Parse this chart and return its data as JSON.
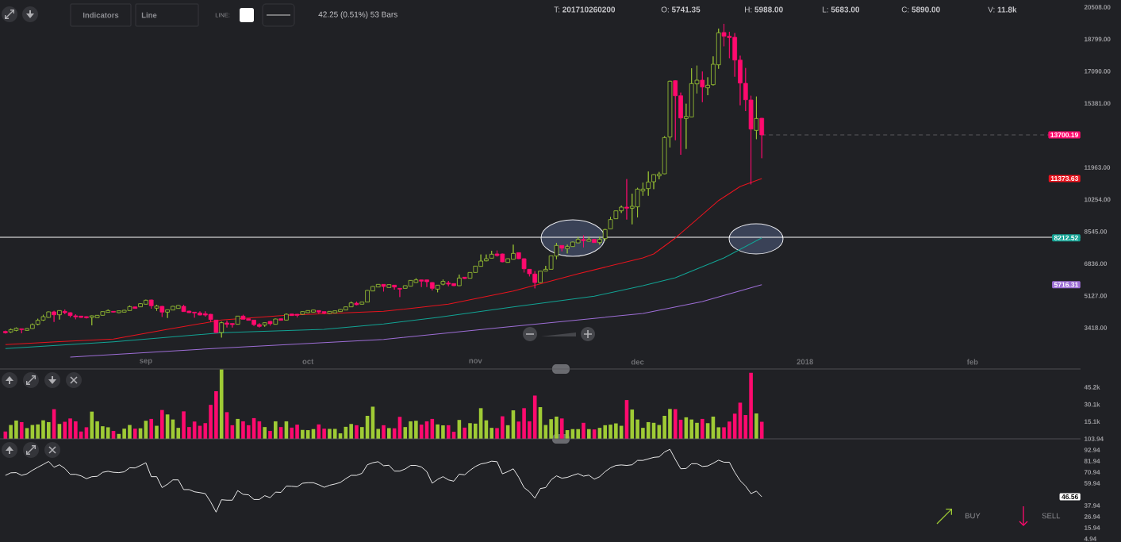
{
  "chart_data": [
    {
      "type": "candlestick",
      "x": [
        "2017-08-06",
        "2017-08-07",
        "2017-08-08",
        "2017-08-09",
        "2017-08-10",
        "2017-08-11",
        "2017-08-12",
        "2017-08-13",
        "2017-08-14",
        "2017-08-15",
        "2017-08-16",
        "2017-08-17",
        "2017-08-18",
        "2017-08-19",
        "2017-08-20",
        "2017-08-21",
        "2017-08-22",
        "2017-08-23",
        "2017-08-24",
        "2017-08-25",
        "2017-08-26",
        "2017-08-27",
        "2017-08-28",
        "2017-08-29",
        "2017-08-30",
        "2017-08-31",
        "2017-09-01",
        "2017-09-02",
        "2017-09-03",
        "2017-09-04",
        "2017-09-05",
        "2017-09-06",
        "2017-09-07",
        "2017-09-08",
        "2017-09-09",
        "2017-09-10",
        "2017-09-11",
        "2017-09-12",
        "2017-09-13",
        "2017-09-14",
        "2017-09-15",
        "2017-09-16",
        "2017-09-17",
        "2017-09-18",
        "2017-09-19",
        "2017-09-20",
        "2017-09-21",
        "2017-09-22",
        "2017-09-23",
        "2017-09-24",
        "2017-09-25",
        "2017-09-26",
        "2017-09-27",
        "2017-09-28",
        "2017-09-29",
        "2017-09-30",
        "2017-10-01",
        "2017-10-02",
        "2017-10-03",
        "2017-10-04",
        "2017-10-05",
        "2017-10-06",
        "2017-10-07",
        "2017-10-08",
        "2017-10-09",
        "2017-10-10",
        "2017-10-11",
        "2017-10-12",
        "2017-10-13",
        "2017-10-14",
        "2017-10-15",
        "2017-10-16",
        "2017-10-17",
        "2017-10-18",
        "2017-10-19",
        "2017-10-20",
        "2017-10-21",
        "2017-10-22",
        "2017-10-23",
        "2017-10-24",
        "2017-10-25",
        "2017-10-26",
        "2017-10-27",
        "2017-10-28",
        "2017-10-29",
        "2017-10-30",
        "2017-10-31",
        "2017-11-01",
        "2017-11-02",
        "2017-11-03",
        "2017-11-04",
        "2017-11-05",
        "2017-11-06",
        "2017-11-07",
        "2017-11-08",
        "2017-11-09",
        "2017-11-10",
        "2017-11-11",
        "2017-11-12",
        "2017-11-13",
        "2017-11-14",
        "2017-11-15",
        "2017-11-16",
        "2017-11-17",
        "2017-11-18",
        "2017-11-19",
        "2017-11-20",
        "2017-11-21",
        "2017-11-22",
        "2017-11-23",
        "2017-11-24",
        "2017-11-25",
        "2017-11-26",
        "2017-11-27",
        "2017-11-28",
        "2017-11-29",
        "2017-11-30",
        "2017-12-01",
        "2017-12-02",
        "2017-12-03",
        "2017-12-04",
        "2017-12-05",
        "2017-12-06",
        "2017-12-07",
        "2017-12-08",
        "2017-12-09",
        "2017-12-10",
        "2017-12-11",
        "2017-12-12",
        "2017-12-13",
        "2017-12-14",
        "2017-12-15",
        "2017-12-16",
        "2017-12-17",
        "2017-12-18",
        "2017-12-19",
        "2017-12-20",
        "2017-12-21",
        "2017-12-22",
        "2017-12-23",
        "2017-12-24"
      ],
      "ohlc": [
        [
          3222,
          3264,
          3109,
          3151
        ],
        [
          3194,
          3377,
          3151,
          3320
        ],
        [
          3278,
          3433,
          3236,
          3391
        ],
        [
          3363,
          3377,
          3123,
          3320
        ],
        [
          3278,
          3391,
          3264,
          3377
        ],
        [
          3377,
          3645,
          3363,
          3588
        ],
        [
          3602,
          3899,
          3546,
          3814
        ],
        [
          3828,
          4110,
          3786,
          4011
        ],
        [
          3969,
          4279,
          3955,
          4265
        ],
        [
          4265,
          4322,
          3729,
          4110
        ],
        [
          4110,
          4350,
          3856,
          4336
        ],
        [
          4293,
          4392,
          4138,
          4223
        ],
        [
          4223,
          4237,
          3969,
          4068
        ],
        [
          4054,
          4138,
          3870,
          3997
        ],
        [
          4040,
          4054,
          3955,
          3969
        ],
        [
          4011,
          4025,
          3913,
          3955
        ],
        [
          3969,
          4068,
          3546,
          4054
        ],
        [
          3955,
          4096,
          3941,
          4082
        ],
        [
          4082,
          4293,
          4068,
          4279
        ],
        [
          4237,
          4392,
          4223,
          4336
        ],
        [
          4293,
          4307,
          4237,
          4251
        ],
        [
          4223,
          4336,
          4209,
          4322
        ],
        [
          4251,
          4364,
          4237,
          4350
        ],
        [
          4336,
          4604,
          4322,
          4547
        ],
        [
          4533,
          4547,
          4434,
          4448
        ],
        [
          4533,
          4730,
          4519,
          4702
        ],
        [
          4674,
          4914,
          4660,
          4886
        ],
        [
          4900,
          4914,
          4434,
          4590
        ],
        [
          4463,
          4646,
          4322,
          4575
        ],
        [
          4561,
          4575,
          3997,
          4251
        ],
        [
          4251,
          4392,
          3941,
          4378
        ],
        [
          4364,
          4575,
          4350,
          4561
        ],
        [
          4448,
          4618,
          4434,
          4604
        ],
        [
          4561,
          4646,
          4265,
          4279
        ],
        [
          4307,
          4322,
          4209,
          4223
        ],
        [
          4251,
          4265,
          3955,
          4209
        ],
        [
          4209,
          4293,
          4082,
          4096
        ],
        [
          4166,
          4293,
          4011,
          4096
        ],
        [
          4138,
          4152,
          3729,
          3856
        ],
        [
          3828,
          3842,
          3151,
          3165
        ],
        [
          3165,
          3743,
          2897,
          3687
        ],
        [
          3673,
          3800,
          3433,
          3602
        ],
        [
          3645,
          3659,
          3433,
          3588
        ],
        [
          3602,
          4054,
          3588,
          4040
        ],
        [
          4040,
          4110,
          3856,
          3870
        ],
        [
          3899,
          3913,
          3800,
          3814
        ],
        [
          3828,
          3842,
          3518,
          3588
        ],
        [
          3588,
          3659,
          3433,
          3490
        ],
        [
          3560,
          3701,
          3476,
          3687
        ],
        [
          3758,
          3772,
          3532,
          3631
        ],
        [
          3602,
          3899,
          3588,
          3884
        ],
        [
          3899,
          3913,
          3800,
          3814
        ],
        [
          3828,
          4181,
          3814,
          4138
        ],
        [
          4152,
          4166,
          4054,
          4068
        ],
        [
          4138,
          4152,
          3969,
          4082
        ],
        [
          4138,
          4293,
          4124,
          4279
        ],
        [
          4223,
          4350,
          4209,
          4336
        ],
        [
          4251,
          4378,
          4237,
          4364
        ],
        [
          4336,
          4350,
          4181,
          4251
        ],
        [
          4279,
          4293,
          4138,
          4209
        ],
        [
          4181,
          4307,
          4166,
          4293
        ],
        [
          4209,
          4336,
          4195,
          4322
        ],
        [
          4279,
          4406,
          4265,
          4392
        ],
        [
          4364,
          4547,
          4350,
          4533
        ],
        [
          4533,
          4815,
          4519,
          4744
        ],
        [
          4730,
          4815,
          4618,
          4646
        ],
        [
          4674,
          4801,
          4660,
          4787
        ],
        [
          4787,
          5421,
          4773,
          5407
        ],
        [
          5379,
          5633,
          5365,
          5619
        ],
        [
          5591,
          5746,
          5577,
          5732
        ],
        [
          5732,
          5746,
          5351,
          5619
        ],
        [
          5563,
          5732,
          5549,
          5718
        ],
        [
          5689,
          5703,
          5450,
          5591
        ],
        [
          5520,
          5534,
          5055,
          5478
        ],
        [
          5520,
          5675,
          5506,
          5661
        ],
        [
          5633,
          5957,
          5619,
          5943
        ],
        [
          5830,
          6056,
          5816,
          5971
        ],
        [
          5971,
          5985,
          5591,
          5901
        ],
        [
          5971,
          5985,
          5591,
          5873
        ],
        [
          5830,
          5844,
          5407,
          5520
        ],
        [
          5478,
          5703,
          5309,
          5689
        ],
        [
          5741.35,
          5988,
          5683,
          5890
        ],
        [
          5802,
          5915,
          5633,
          5746
        ],
        [
          5774,
          5788,
          5647,
          5661
        ],
        [
          5661,
          6253,
          5647,
          6070
        ],
        [
          6112,
          6126,
          6028,
          6042
        ],
        [
          6056,
          6380,
          6042,
          6366
        ],
        [
          6366,
          6719,
          6352,
          6704
        ],
        [
          6690,
          7325,
          6676,
          6972
        ],
        [
          6986,
          7325,
          6958,
          7099
        ],
        [
          7127,
          7522,
          7113,
          7339
        ],
        [
          7353,
          7536,
          7212,
          7268
        ],
        [
          7353,
          7367,
          6916,
          6930
        ],
        [
          6902,
          7113,
          6888,
          7099
        ],
        [
          7071,
          7847,
          7057,
          7381
        ],
        [
          7424,
          7438,
          7085,
          7099
        ],
        [
          7099,
          7113,
          6366,
          6563
        ],
        [
          6535,
          6549,
          6155,
          6296
        ],
        [
          6282,
          6437,
          5520,
          5830
        ],
        [
          5830,
          6451,
          5816,
          6437
        ],
        [
          6437,
          6719,
          6423,
          6535
        ],
        [
          6535,
          7268,
          6521,
          7254
        ],
        [
          7240,
          7945,
          7071,
          7804
        ],
        [
          7804,
          7818,
          7494,
          7663
        ],
        [
          7635,
          7847,
          7381,
          7748
        ],
        [
          7748,
          8002,
          7734,
          7988
        ],
        [
          7945,
          8270,
          7931,
          8129
        ],
        [
          8129,
          8340,
          7706,
          8058
        ],
        [
          8030,
          8270,
          8016,
          8129
        ],
        [
          8129,
          8143,
          7945,
          7959
        ],
        [
          7959,
          8270,
          7847,
          8129
        ],
        [
          8171,
          8693,
          8058,
          8650
        ],
        [
          8693,
          9327,
          8679,
          9186
        ],
        [
          9229,
          9665,
          9214,
          9651
        ],
        [
          9651,
          9933,
          9538,
          9849
        ],
        [
          9849,
          11343,
          9186,
          9792
        ],
        [
          9792,
          10568,
          8932,
          9891
        ],
        [
          9863,
          10878,
          9299,
          10808
        ],
        [
          10709,
          11160,
          10455,
          10808
        ],
        [
          10836,
          11752,
          10455,
          11188
        ],
        [
          11202,
          11597,
          10808,
          11583
        ],
        [
          11513,
          11724,
          11329,
          11611
        ],
        [
          11625,
          13628,
          11611,
          13557
        ],
        [
          13585,
          16588,
          13035,
          16560
        ],
        [
          16588,
          16616,
          13416,
          15785
        ],
        [
          15785,
          15954,
          12641,
          14600
        ],
        [
          14572,
          15362,
          12951,
          14685
        ],
        [
          14657,
          17251,
          14643,
          16434
        ],
        [
          16419,
          17392,
          15912,
          16616
        ],
        [
          16616,
          17082,
          15447,
          16250
        ],
        [
          16208,
          16772,
          15813,
          16349
        ],
        [
          16377,
          17886,
          16335,
          17463
        ],
        [
          17435,
          19366,
          17223,
          19141
        ],
        [
          19155,
          19620,
          18422,
          18957
        ],
        [
          18957,
          19197,
          17787,
          18887
        ],
        [
          18901,
          19127,
          16800,
          17688
        ],
        [
          17688,
          17928,
          15277,
          16462
        ],
        [
          16448,
          17265,
          14967,
          15573
        ],
        [
          15559,
          15785,
          11061,
          14008
        ],
        [
          13938,
          15743,
          13472,
          14572
        ],
        [
          14586,
          14600,
          12457,
          13700.19
        ]
      ],
      "colors": [
        "#ff0a6e",
        "#9fcb35",
        "#9fcb35",
        "#ff0a6e",
        "#9fcb35",
        "#9fcb35",
        "#9fcb35",
        "#9fcb35",
        "#9fcb35",
        "#ff0a6e",
        "#9fcb35",
        "#ff0a6e",
        "#ff0a6e",
        "#ff0a6e",
        "#ff0a6e",
        "#ff0a6e",
        "#9fcb35",
        "#9fcb35",
        "#9fcb35",
        "#9fcb35",
        "#ff0a6e",
        "#9fcb35",
        "#9fcb35",
        "#9fcb35",
        "#ff0a6e",
        "#9fcb35",
        "#9fcb35",
        "#ff0a6e",
        "#9fcb35",
        "#ff0a6e",
        "#9fcb35",
        "#9fcb35",
        "#9fcb35",
        "#ff0a6e",
        "#ff0a6e",
        "#ff0a6e",
        "#ff0a6e",
        "#ff0a6e",
        "#ff0a6e",
        "#ff0a6e",
        "#9fcb35",
        "#ff0a6e",
        "#ff0a6e",
        "#9fcb35",
        "#ff0a6e",
        "#ff0a6e",
        "#ff0a6e",
        "#ff0a6e",
        "#9fcb35",
        "#ff0a6e",
        "#9fcb35",
        "#ff0a6e",
        "#9fcb35",
        "#ff0a6e",
        "#ff0a6e",
        "#9fcb35",
        "#9fcb35",
        "#9fcb35",
        "#ff0a6e",
        "#ff0a6e",
        "#9fcb35",
        "#9fcb35",
        "#9fcb35",
        "#9fcb35",
        "#9fcb35",
        "#ff0a6e",
        "#9fcb35",
        "#9fcb35",
        "#9fcb35",
        "#9fcb35",
        "#ff0a6e",
        "#9fcb35",
        "#ff0a6e",
        "#ff0a6e",
        "#9fcb35",
        "#9fcb35",
        "#9fcb35",
        "#ff0a6e",
        "#ff0a6e",
        "#ff0a6e",
        "#9fcb35",
        "#9fcb35",
        "#ff0a6e",
        "#ff0a6e",
        "#9fcb35",
        "#ff0a6e",
        "#9fcb35",
        "#9fcb35",
        "#9fcb35",
        "#9fcb35",
        "#9fcb35",
        "#ff0a6e",
        "#ff0a6e",
        "#9fcb35",
        "#9fcb35",
        "#ff0a6e",
        "#ff0a6e",
        "#ff0a6e",
        "#ff0a6e",
        "#9fcb35",
        "#9fcb35",
        "#9fcb35",
        "#9fcb35",
        "#ff0a6e",
        "#9fcb35",
        "#9fcb35",
        "#9fcb35",
        "#ff0a6e",
        "#9fcb35",
        "#ff0a6e",
        "#9fcb35",
        "#9fcb35",
        "#9fcb35",
        "#9fcb35",
        "#9fcb35",
        "#ff0a6e",
        "#9fcb35",
        "#9fcb35",
        "#9fcb35",
        "#9fcb35",
        "#9fcb35",
        "#9fcb35",
        "#9fcb35",
        "#9fcb35",
        "#ff0a6e",
        "#ff0a6e",
        "#9fcb35",
        "#9fcb35",
        "#9fcb35",
        "#ff0a6e",
        "#9fcb35",
        "#9fcb35",
        "#9fcb35",
        "#ff0a6e",
        "#ff0a6e",
        "#ff0a6e",
        "#ff0a6e",
        "#ff0a6e",
        "#ff0a6e",
        "#9fcb35",
        "#ff0a6e"
      ],
      "series": [
        {
          "type": "line",
          "color": "#e8141e",
          "x": [
            "2017-08-06",
            "2017-08-16",
            "2017-08-26",
            "2017-09-05",
            "2017-09-15",
            "2017-09-27",
            "2017-10-15",
            "2017-10-27",
            "2017-11-08",
            "2017-11-20",
            "2017-12-02",
            "2017-12-04",
            "2017-12-08",
            "2017-12-12",
            "2017-12-16",
            "2017-12-20",
            "2017-12-24"
          ],
          "values": [
            2517,
            2680,
            2813,
            3335,
            3828,
            4082,
            4293,
            4674,
            5379,
            6296,
            7141,
            7353,
            8200,
            9200,
            10200,
            10950,
            11373.63
          ]
        },
        {
          "type": "line",
          "color": "#12a394",
          "x": [
            "2017-08-06",
            "2017-08-26",
            "2017-09-15",
            "2017-10-04",
            "2017-10-15",
            "2017-10-25",
            "2017-11-08",
            "2017-11-23",
            "2017-12-02",
            "2017-12-08",
            "2017-12-17",
            "2017-12-24"
          ],
          "values": [
            2305,
            2672,
            3151,
            3335,
            3620,
            3969,
            4533,
            5097,
            5661,
            6083,
            7141,
            8212.52
          ]
        },
        {
          "type": "line",
          "color": "#9d6ed6",
          "x": [
            "2017-08-18",
            "2017-09-14",
            "2017-10-15",
            "2017-11-05",
            "2017-12-02",
            "2017-12-13",
            "2017-12-24"
          ],
          "values": [
            1854,
            2319,
            2799,
            3405,
            4180,
            4815,
            5716.31
          ]
        }
      ],
      "xlim": [
        "2017-08-05",
        "2018-02-21"
      ],
      "ylim": [
        1220,
        20890
      ],
      "xticks": [
        {
          "value": "2017-09-01",
          "label": "sep"
        },
        {
          "value": "2017-10-01",
          "label": "oct"
        },
        {
          "value": "2017-11-01",
          "label": "nov"
        },
        {
          "value": "2017-12-01",
          "label": "dec"
        },
        {
          "value": "2018-01-01",
          "label": "2018"
        },
        {
          "value": "2018-02-01",
          "label": "feb"
        }
      ],
      "yticks": [
        {
          "value": 3418,
          "label": "3418.00"
        },
        {
          "value": 5127,
          "label": "5127.00"
        },
        {
          "value": 6836,
          "label": "6836.00"
        },
        {
          "value": 8545,
          "label": "8545.00"
        },
        {
          "value": 10254,
          "label": "10254.00"
        },
        {
          "value": 11963,
          "label": "11963.00"
        },
        {
          "value": 15381,
          "label": "15381.00"
        },
        {
          "value": 17090,
          "label": "17090.00"
        },
        {
          "value": 18799,
          "label": "18799.00"
        },
        {
          "value": 20508,
          "label": "20508.00"
        }
      ],
      "ref_lines": [
        {
          "axis": "y",
          "value": 8240,
          "color": "#ffffff"
        },
        {
          "axis": "y",
          "value": 13700.19,
          "color": "#5a5a5e",
          "line_style": "dashed"
        }
      ],
      "annotations": [
        "Indicators",
        "Line",
        "LINE:",
        "42.25 (0.51%) 53 Bars",
        "T: **201710260200**",
        "O: **5741.35**",
        "H: **5988.00**",
        "L: **5683.00**",
        "C: **5890.00**",
        "V: **11.8k**",
        "13700.19",
        "11373.63",
        "8212.52",
        "5716.31"
      ]
    },
    {
      "type": "bar",
      "x": [
        "2017-08-06",
        "2017-08-07",
        "2017-08-08",
        "2017-08-09",
        "2017-08-10",
        "2017-08-11",
        "2017-08-12",
        "2017-08-13",
        "2017-08-14",
        "2017-08-15",
        "2017-08-16",
        "2017-08-17",
        "2017-08-18",
        "2017-08-19",
        "2017-08-20",
        "2017-08-21",
        "2017-08-22",
        "2017-08-23",
        "2017-08-24",
        "2017-08-25",
        "2017-08-26",
        "2017-08-27",
        "2017-08-28",
        "2017-08-29",
        "2017-08-30",
        "2017-08-31",
        "2017-09-01",
        "2017-09-02",
        "2017-09-03",
        "2017-09-04",
        "2017-09-05",
        "2017-09-06",
        "2017-09-07",
        "2017-09-08",
        "2017-09-09",
        "2017-09-10",
        "2017-09-11",
        "2017-09-12",
        "2017-09-13",
        "2017-09-14",
        "2017-09-15",
        "2017-09-16",
        "2017-09-17",
        "2017-09-18",
        "2017-09-19",
        "2017-09-20",
        "2017-09-21",
        "2017-09-22",
        "2017-09-23",
        "2017-09-24",
        "2017-09-25",
        "2017-09-26",
        "2017-09-27",
        "2017-09-28",
        "2017-09-29",
        "2017-09-30",
        "2017-10-01",
        "2017-10-02",
        "2017-10-03",
        "2017-10-04",
        "2017-10-05",
        "2017-10-06",
        "2017-10-07",
        "2017-10-08",
        "2017-10-09",
        "2017-10-10",
        "2017-10-11",
        "2017-10-12",
        "2017-10-13",
        "2017-10-14",
        "2017-10-15",
        "2017-10-16",
        "2017-10-17",
        "2017-10-18",
        "2017-10-19",
        "2017-10-20",
        "2017-10-21",
        "2017-10-22",
        "2017-10-23",
        "2017-10-24",
        "2017-10-25",
        "2017-10-26",
        "2017-10-27",
        "2017-10-28",
        "2017-10-29",
        "2017-10-30",
        "2017-10-31",
        "2017-11-01",
        "2017-11-02",
        "2017-11-03",
        "2017-11-04",
        "2017-11-05",
        "2017-11-06",
        "2017-11-07",
        "2017-11-08",
        "2017-11-09",
        "2017-11-10",
        "2017-11-11",
        "2017-11-12",
        "2017-11-13",
        "2017-11-14",
        "2017-11-15",
        "2017-11-16",
        "2017-11-17",
        "2017-11-18",
        "2017-11-19",
        "2017-11-20",
        "2017-11-21",
        "2017-11-22",
        "2017-11-23",
        "2017-11-24",
        "2017-11-25",
        "2017-11-26",
        "2017-11-27",
        "2017-11-28",
        "2017-11-29",
        "2017-11-30",
        "2017-12-01",
        "2017-12-02",
        "2017-12-03",
        "2017-12-04",
        "2017-12-05",
        "2017-12-06",
        "2017-12-07",
        "2017-12-08",
        "2017-12-09",
        "2017-12-10",
        "2017-12-11",
        "2017-12-12",
        "2017-12-13",
        "2017-12-14",
        "2017-12-15",
        "2017-12-16",
        "2017-12-17",
        "2017-12-18",
        "2017-12-19",
        "2017-12-20",
        "2017-12-21",
        "2017-12-22",
        "2017-12-23",
        "2017-12-24"
      ],
      "values": [
        6.4,
        12.1,
        16.0,
        14.6,
        9.4,
        12.1,
        12.6,
        16.2,
        14.6,
        25.9,
        13.0,
        14.9,
        17.8,
        15.3,
        6.4,
        10.1,
        23.8,
        15.3,
        11.0,
        10.1,
        6.9,
        4.3,
        8.9,
        12.1,
        8.9,
        9.2,
        15.8,
        17.4,
        11.4,
        25.2,
        21.3,
        16.9,
        9.6,
        24.0,
        10.3,
        15.1,
        11.4,
        13.7,
        29.7,
        41.6,
        60.6,
        23.3,
        11.9,
        17.4,
        15.3,
        11.9,
        18.1,
        15.3,
        10.3,
        6.9,
        15.3,
        10.3,
        15.3,
        9.8,
        12.4,
        7.8,
        7.6,
        8.5,
        12.6,
        8.9,
        8.7,
        8.7,
        4.8,
        10.5,
        13.0,
        11.9,
        10.3,
        20.1,
        28.1,
        8.7,
        11.9,
        9.4,
        9.2,
        19.2,
        10.3,
        15.3,
        15.8,
        12.4,
        15.3,
        17.4,
        12.6,
        11.8,
        11.9,
        6.2,
        16.5,
        9.8,
        13.7,
        13.3,
        26.8,
        16.2,
        9.6,
        9.4,
        19.7,
        11.9,
        24.9,
        15.1,
        26.8,
        15.3,
        37.8,
        27.7,
        12.1,
        17.2,
        19.4,
        17.8,
        7.6,
        8.5,
        8.5,
        14.0,
        8.5,
        8.2,
        9.6,
        11.9,
        12.4,
        13.5,
        11.4,
        33.9,
        25.6,
        16.9,
        9.6,
        14.6,
        14.0,
        12.1,
        20.1,
        26.1,
        25.9,
        16.7,
        18.8,
        16.9,
        14.0,
        17.4,
        13.7,
        19.4,
        10.1,
        10.1,
        15.1,
        22.0,
        31.6,
        20.8,
        57.7,
        22.2,
        14.9
      ],
      "colors": [
        "#ff0a6e",
        "#9fcb35",
        "#9fcb35",
        "#ff0a6e",
        "#9fcb35",
        "#9fcb35",
        "#9fcb35",
        "#9fcb35",
        "#9fcb35",
        "#ff0a6e",
        "#9fcb35",
        "#ff0a6e",
        "#ff0a6e",
        "#ff0a6e",
        "#ff0a6e",
        "#ff0a6e",
        "#9fcb35",
        "#9fcb35",
        "#9fcb35",
        "#9fcb35",
        "#ff0a6e",
        "#9fcb35",
        "#9fcb35",
        "#9fcb35",
        "#ff0a6e",
        "#9fcb35",
        "#9fcb35",
        "#ff0a6e",
        "#9fcb35",
        "#ff0a6e",
        "#9fcb35",
        "#9fcb35",
        "#9fcb35",
        "#ff0a6e",
        "#ff0a6e",
        "#ff0a6e",
        "#ff0a6e",
        "#ff0a6e",
        "#ff0a6e",
        "#ff0a6e",
        "#9fcb35",
        "#ff0a6e",
        "#ff0a6e",
        "#9fcb35",
        "#ff0a6e",
        "#ff0a6e",
        "#ff0a6e",
        "#ff0a6e",
        "#9fcb35",
        "#ff0a6e",
        "#9fcb35",
        "#ff0a6e",
        "#9fcb35",
        "#ff0a6e",
        "#ff0a6e",
        "#9fcb35",
        "#9fcb35",
        "#9fcb35",
        "#ff0a6e",
        "#ff0a6e",
        "#9fcb35",
        "#9fcb35",
        "#9fcb35",
        "#9fcb35",
        "#9fcb35",
        "#ff0a6e",
        "#9fcb35",
        "#9fcb35",
        "#9fcb35",
        "#9fcb35",
        "#ff0a6e",
        "#9fcb35",
        "#ff0a6e",
        "#ff0a6e",
        "#9fcb35",
        "#9fcb35",
        "#9fcb35",
        "#ff0a6e",
        "#ff0a6e",
        "#ff0a6e",
        "#9fcb35",
        "#9fcb35",
        "#ff0a6e",
        "#ff0a6e",
        "#9fcb35",
        "#ff0a6e",
        "#9fcb35",
        "#9fcb35",
        "#9fcb35",
        "#9fcb35",
        "#9fcb35",
        "#ff0a6e",
        "#ff0a6e",
        "#9fcb35",
        "#9fcb35",
        "#ff0a6e",
        "#ff0a6e",
        "#ff0a6e",
        "#ff0a6e",
        "#9fcb35",
        "#9fcb35",
        "#9fcb35",
        "#9fcb35",
        "#ff0a6e",
        "#9fcb35",
        "#9fcb35",
        "#9fcb35",
        "#ff0a6e",
        "#9fcb35",
        "#ff0a6e",
        "#9fcb35",
        "#9fcb35",
        "#9fcb35",
        "#9fcb35",
        "#9fcb35",
        "#ff0a6e",
        "#9fcb35",
        "#9fcb35",
        "#9fcb35",
        "#9fcb35",
        "#9fcb35",
        "#9fcb35",
        "#9fcb35",
        "#9fcb35",
        "#ff0a6e",
        "#ff0a6e",
        "#9fcb35",
        "#9fcb35",
        "#9fcb35",
        "#ff0a6e",
        "#9fcb35",
        "#9fcb35",
        "#9fcb35",
        "#ff0a6e",
        "#ff0a6e",
        "#ff0a6e",
        "#ff0a6e",
        "#ff0a6e",
        "#ff0a6e",
        "#9fcb35",
        "#ff0a6e"
      ],
      "xlim": [
        "2017-08-05",
        "2018-02-21"
      ],
      "ylim": [
        0,
        61
      ],
      "yticks": [
        {
          "value": 15.1,
          "label": "15.1k"
        },
        {
          "value": 30.1,
          "label": "30.1k"
        },
        {
          "value": 45.2,
          "label": "45.2k"
        }
      ],
      "tick_labels": "y"
    },
    {
      "type": "line",
      "x": [
        "2017-08-06",
        "2017-08-07",
        "2017-08-08",
        "2017-08-09",
        "2017-08-10",
        "2017-08-11",
        "2017-08-12",
        "2017-08-13",
        "2017-08-14",
        "2017-08-15",
        "2017-08-16",
        "2017-08-17",
        "2017-08-18",
        "2017-08-19",
        "2017-08-20",
        "2017-08-21",
        "2017-08-22",
        "2017-08-23",
        "2017-08-24",
        "2017-08-25",
        "2017-08-26",
        "2017-08-27",
        "2017-08-28",
        "2017-08-29",
        "2017-08-30",
        "2017-08-31",
        "2017-09-01",
        "2017-09-02",
        "2017-09-03",
        "2017-09-04",
        "2017-09-05",
        "2017-09-06",
        "2017-09-07",
        "2017-09-08",
        "2017-09-09",
        "2017-09-10",
        "2017-09-11",
        "2017-09-12",
        "2017-09-13",
        "2017-09-14",
        "2017-09-15",
        "2017-09-16",
        "2017-09-17",
        "2017-09-18",
        "2017-09-19",
        "2017-09-20",
        "2017-09-21",
        "2017-09-22",
        "2017-09-23",
        "2017-09-24",
        "2017-09-25",
        "2017-09-26",
        "2017-09-27",
        "2017-09-28",
        "2017-09-29",
        "2017-09-30",
        "2017-10-01",
        "2017-10-02",
        "2017-10-03",
        "2017-10-04",
        "2017-10-05",
        "2017-10-06",
        "2017-10-07",
        "2017-10-08",
        "2017-10-09",
        "2017-10-10",
        "2017-10-11",
        "2017-10-12",
        "2017-10-13",
        "2017-10-14",
        "2017-10-15",
        "2017-10-16",
        "2017-10-17",
        "2017-10-18",
        "2017-10-19",
        "2017-10-20",
        "2017-10-21",
        "2017-10-22",
        "2017-10-23",
        "2017-10-24",
        "2017-10-25",
        "2017-10-26",
        "2017-10-27",
        "2017-10-28",
        "2017-10-29",
        "2017-10-30",
        "2017-10-31",
        "2017-11-01",
        "2017-11-02",
        "2017-11-03",
        "2017-11-04",
        "2017-11-05",
        "2017-11-06",
        "2017-11-07",
        "2017-11-08",
        "2017-11-09",
        "2017-11-10",
        "2017-11-11",
        "2017-11-12",
        "2017-11-13",
        "2017-11-14",
        "2017-11-15",
        "2017-11-16",
        "2017-11-17",
        "2017-11-18",
        "2017-11-19",
        "2017-11-20",
        "2017-11-21",
        "2017-11-22",
        "2017-11-23",
        "2017-11-24",
        "2017-11-25",
        "2017-11-26",
        "2017-11-27",
        "2017-11-28",
        "2017-11-29",
        "2017-11-30",
        "2017-12-01",
        "2017-12-02",
        "2017-12-03",
        "2017-12-04",
        "2017-12-05",
        "2017-12-06",
        "2017-12-07",
        "2017-12-08",
        "2017-12-09",
        "2017-12-10",
        "2017-12-11",
        "2017-12-12",
        "2017-12-13",
        "2017-12-14",
        "2017-12-15",
        "2017-12-16",
        "2017-12-17",
        "2017-12-18",
        "2017-12-19",
        "2017-12-20",
        "2017-12-21",
        "2017-12-22",
        "2017-12-23",
        "2017-12-24"
      ],
      "values": [
        67.8,
        70.3,
        70.5,
        67.8,
        69.3,
        72.8,
        75.8,
        78.6,
        81.6,
        75.8,
        78.3,
        74.6,
        68.8,
        68.8,
        67.3,
        64.5,
        66.5,
        66.8,
        70.8,
        71.8,
        70.8,
        70.5,
        71.3,
        75.3,
        75.1,
        77.6,
        80.3,
        66.5,
        66.5,
        55.7,
        59.0,
        63.3,
        63.3,
        53.7,
        53.7,
        51.5,
        50.7,
        49.7,
        41.4,
        31.4,
        43.7,
        43.2,
        43.2,
        52.7,
        49.0,
        48.5,
        43.9,
        43.9,
        47.7,
        45.7,
        51.2,
        50.9,
        57.2,
        57.0,
        56.5,
        60.0,
        60.5,
        60.5,
        58.5,
        56.0,
        58.0,
        59.2,
        60.8,
        64.5,
        67.8,
        67.8,
        69.8,
        78.3,
        80.3,
        81.3,
        77.3,
        77.8,
        72.0,
        72.0,
        74.1,
        77.6,
        77.6,
        76.1,
        71.5,
        60.0,
        63.8,
        66.5,
        63.3,
        62.0,
        69.0,
        68.3,
        72.8,
        76.6,
        79.1,
        80.1,
        81.8,
        81.3,
        69.3,
        71.5,
        74.3,
        66.0,
        55.7,
        51.5,
        45.2,
        54.7,
        55.7,
        63.3,
        67.3,
        65.0,
        65.8,
        67.8,
        69.5,
        67.0,
        68.0,
        64.0,
        66.5,
        71.5,
        75.3,
        77.6,
        78.1,
        77.6,
        78.3,
        82.6,
        82.6,
        84.1,
        85.6,
        86.1,
        90.9,
        93.6,
        83.6,
        74.3,
        74.6,
        79.3,
        79.3,
        76.6,
        77.1,
        79.8,
        82.8,
        80.8,
        80.8,
        70.8,
        62.5,
        57.2,
        49.7,
        52.2,
        46.56
      ],
      "color": "#ffffff",
      "xlim": [
        "2017-08-05",
        "2018-02-21"
      ],
      "ylim": [
        4.94,
        103.94
      ],
      "yticks": [
        4.94,
        15.94,
        26.94,
        37.94,
        59.94,
        70.94,
        81.94,
        92.94,
        103.94
      ],
      "tick_labels": "y",
      "annotations": [
        "46.56",
        "BUY",
        "SELL"
      ]
    }
  ]
}
